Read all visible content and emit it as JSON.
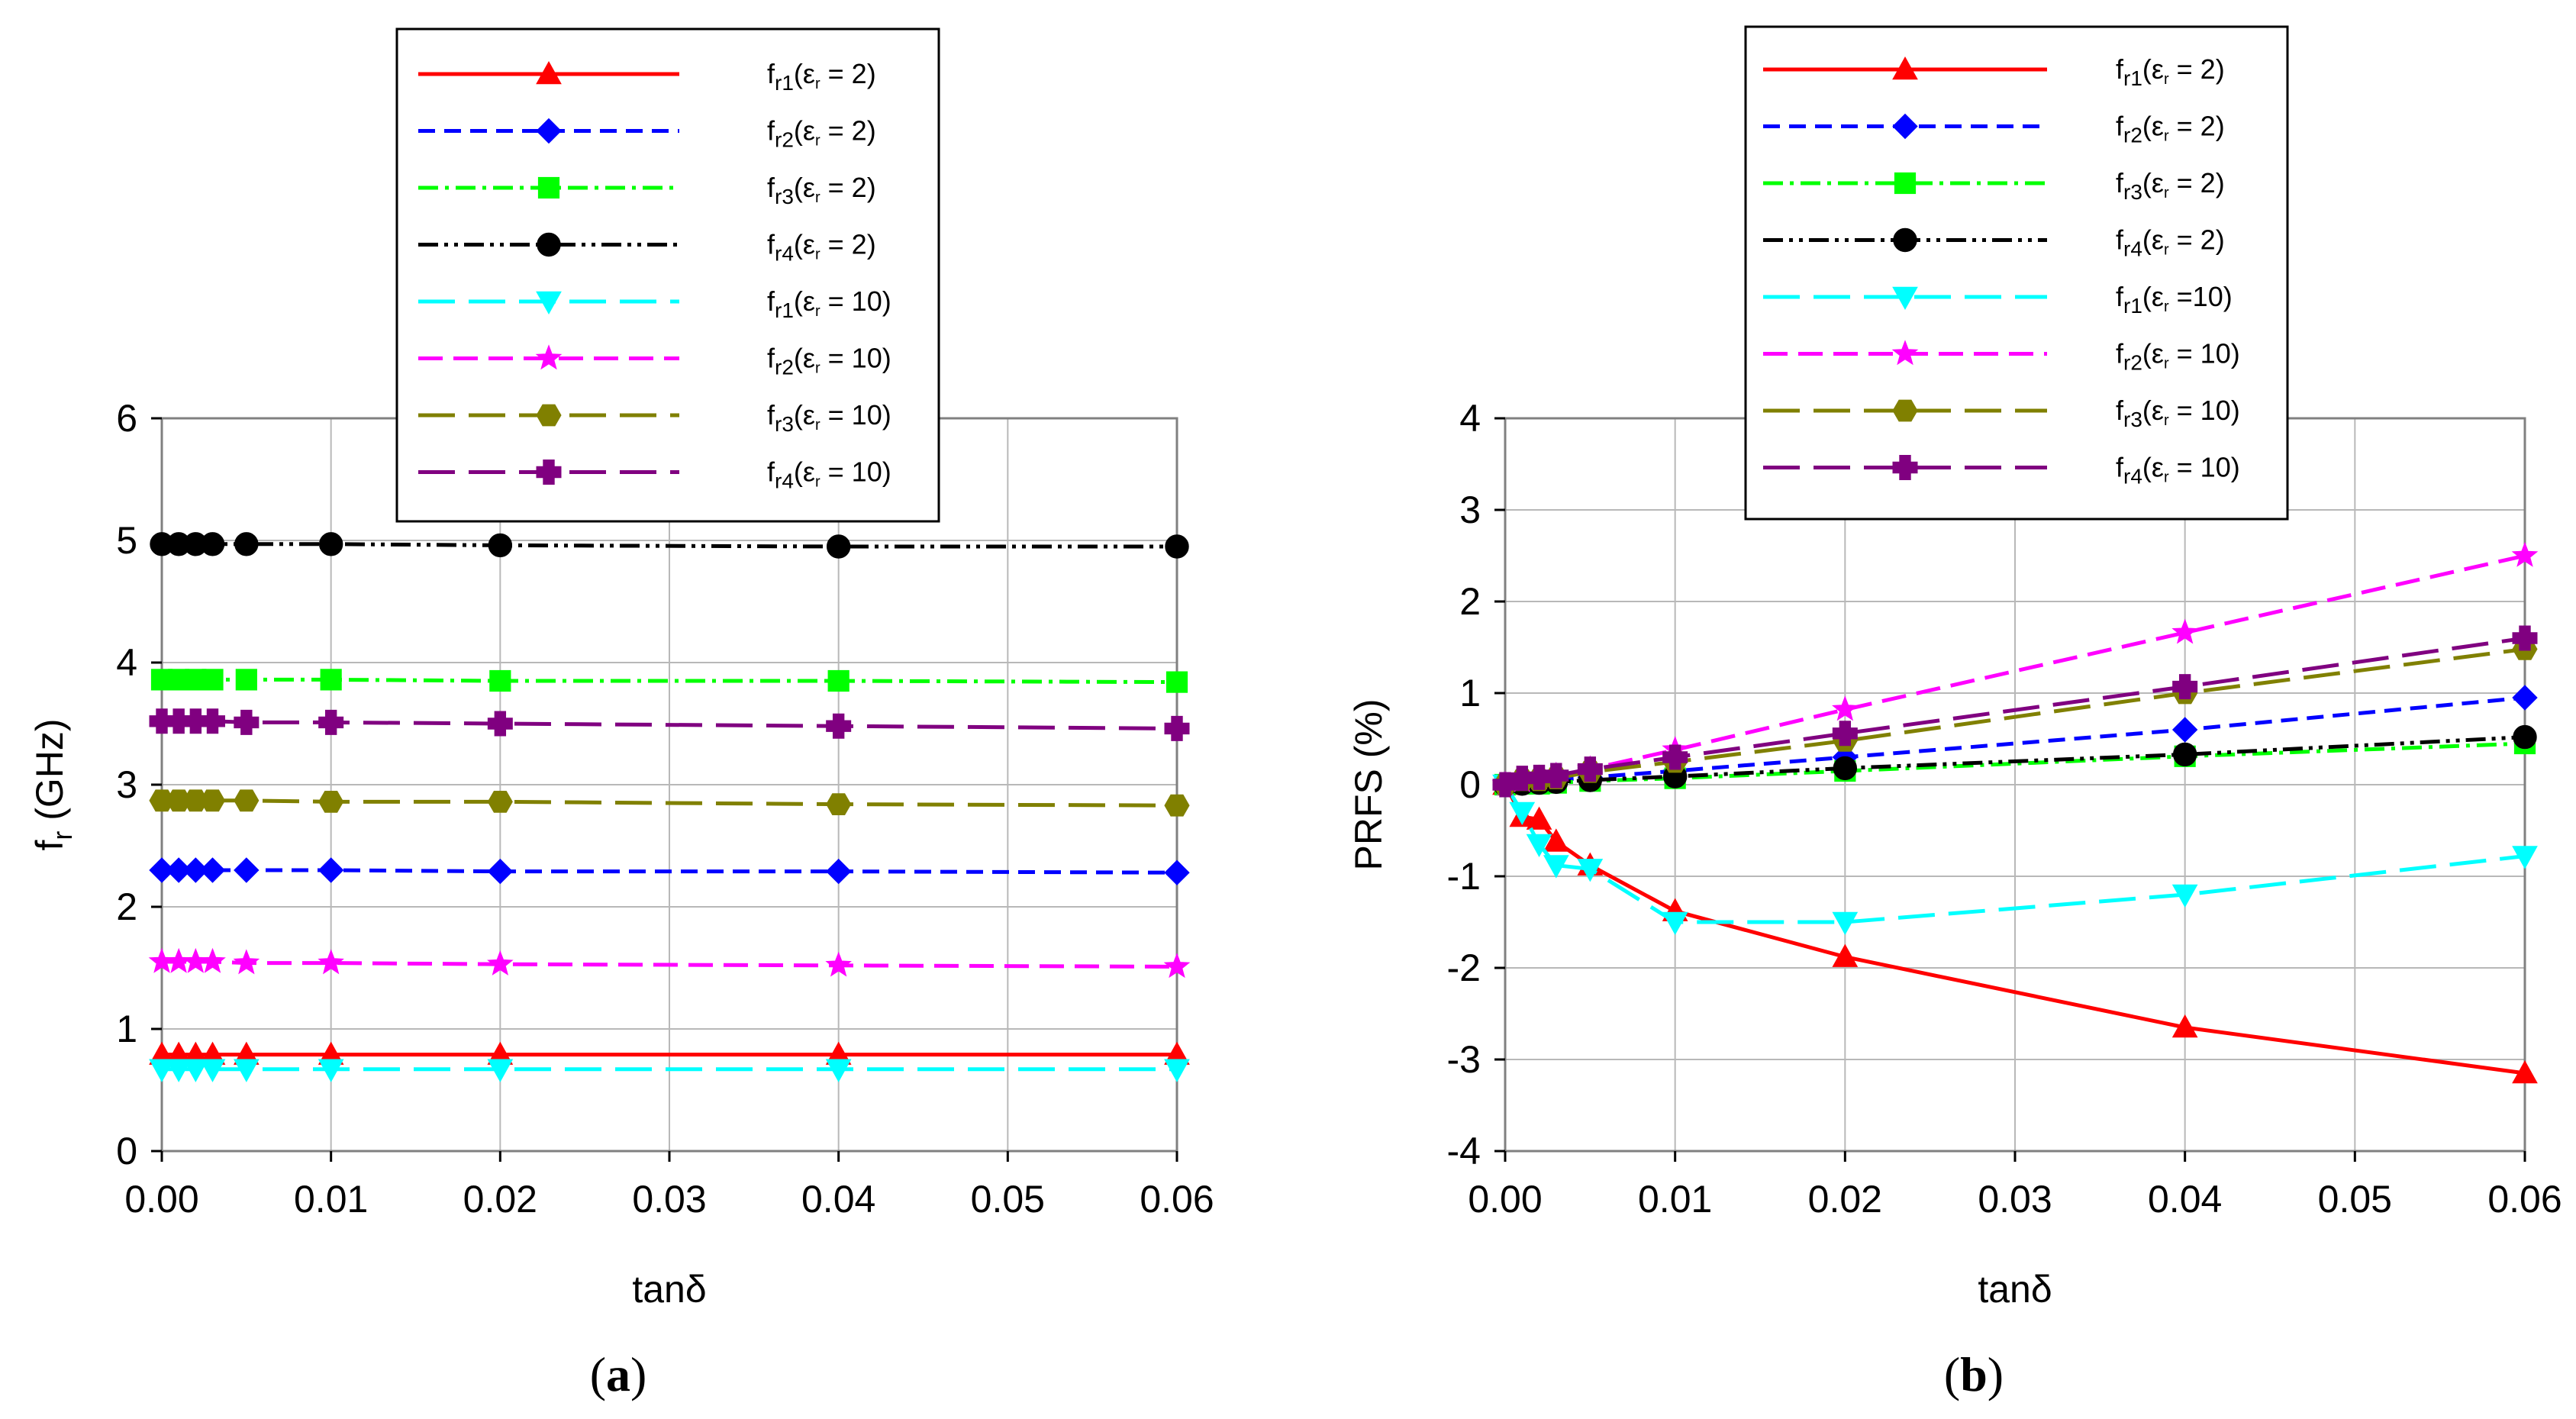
{
  "chart_data": [
    {
      "type": "line",
      "panel": "a",
      "caption": {
        "open": "(",
        "letter": "a",
        "close": ")"
      },
      "xlabel": "tanδ",
      "ylabel": {
        "main": "f",
        "sub": "r",
        "rest": " (GHz)"
      },
      "xlim": [
        0,
        0.06
      ],
      "ylim": [
        0,
        6
      ],
      "xticks": [
        "0.00",
        "0.01",
        "0.02",
        "0.03",
        "0.04",
        "0.05",
        "0.06"
      ],
      "yticks": [
        "0",
        "1",
        "2",
        "3",
        "4",
        "5",
        "6"
      ],
      "grid": true,
      "legend_position": "top-center",
      "x": [
        0,
        0.001,
        0.002,
        0.003,
        0.005,
        0.01,
        0.02,
        0.04,
        0.06
      ],
      "series": [
        {
          "name": "fr1(εr = 2)",
          "label": {
            "pre": "f",
            "sub": "r1",
            "mid": "(ε",
            "sub2": "r",
            "post": " = 2)"
          },
          "color": "#ff0000",
          "dash": "",
          "marker": "triangle",
          "values": [
            0.79,
            0.79,
            0.79,
            0.79,
            0.79,
            0.79,
            0.79,
            0.79,
            0.79
          ]
        },
        {
          "name": "fr2(εr = 2)",
          "label": {
            "pre": "f",
            "sub": "r2",
            "mid": "(ε",
            "sub2": "r",
            "post": " = 2)"
          },
          "color": "#0000ff",
          "dash": "22,12",
          "marker": "diamond",
          "values": [
            2.3,
            2.3,
            2.3,
            2.3,
            2.3,
            2.3,
            2.29,
            2.29,
            2.28
          ]
        },
        {
          "name": "fr3(εr = 2)",
          "label": {
            "pre": "f",
            "sub": "r3",
            "mid": "(ε",
            "sub2": "r",
            "post": " = 2)"
          },
          "color": "#00ff00",
          "dash": "26,9,5,9",
          "marker": "square",
          "values": [
            3.86,
            3.86,
            3.86,
            3.86,
            3.86,
            3.86,
            3.85,
            3.85,
            3.84
          ]
        },
        {
          "name": "fr4(εr = 2)",
          "label": {
            "pre": "f",
            "sub": "r4",
            "mid": "(ε",
            "sub2": "r",
            "post": " = 2)"
          },
          "color": "#000000",
          "dash": "26,8,5,8,5,8",
          "marker": "circle",
          "values": [
            4.97,
            4.97,
            4.97,
            4.97,
            4.97,
            4.97,
            4.96,
            4.95,
            4.95
          ]
        },
        {
          "name": "fr1(εr = 10)",
          "label": {
            "pre": "f",
            "sub": "r1",
            "mid": "(ε",
            "sub2": "r",
            "post": " = 10)"
          },
          "color": "#00ffff",
          "dash": "48,18",
          "marker": "triangle-down",
          "values": [
            0.67,
            0.67,
            0.67,
            0.67,
            0.67,
            0.67,
            0.67,
            0.67,
            0.67
          ]
        },
        {
          "name": "fr2(εr = 10)",
          "label": {
            "pre": "f",
            "sub": "r2",
            "mid": "(ε",
            "sub2": "r",
            "post": " = 10)"
          },
          "color": "#ff00ff",
          "dash": "32,14",
          "marker": "star",
          "values": [
            1.55,
            1.55,
            1.55,
            1.55,
            1.54,
            1.54,
            1.53,
            1.52,
            1.51
          ]
        },
        {
          "name": "fr3(εr = 10)",
          "label": {
            "pre": "f",
            "sub": "r3",
            "mid": "(ε",
            "sub2": "r",
            "post": " = 10)"
          },
          "color": "#808000",
          "dash": "48,18",
          "marker": "hexagon",
          "values": [
            2.87,
            2.87,
            2.87,
            2.87,
            2.87,
            2.86,
            2.86,
            2.84,
            2.83
          ]
        },
        {
          "name": "fr4(εr = 10)",
          "label": {
            "pre": "f",
            "sub": "r4",
            "mid": "(ε",
            "sub2": "r",
            "post": " = 10)"
          },
          "color": "#800080",
          "dash": "48,18",
          "marker": "plus",
          "values": [
            3.52,
            3.52,
            3.52,
            3.52,
            3.51,
            3.51,
            3.5,
            3.48,
            3.46
          ]
        }
      ]
    },
    {
      "type": "line",
      "panel": "b",
      "caption": {
        "open": "(",
        "letter": "b",
        "close": ")"
      },
      "xlabel": "tanδ",
      "ylabel": {
        "main": "PRFS (%)",
        "sub": "",
        "rest": ""
      },
      "xlim": [
        0,
        0.06
      ],
      "ylim": [
        -4,
        4
      ],
      "xticks": [
        "0.00",
        "0.01",
        "0.02",
        "0.03",
        "0.04",
        "0.05",
        "0.06"
      ],
      "yticks": [
        "-4",
        "-3",
        "-2",
        "-1",
        "0",
        "1",
        "2",
        "3",
        "4"
      ],
      "grid": true,
      "legend_position": "top-center",
      "x": [
        0,
        0.001,
        0.002,
        0.003,
        0.005,
        0.01,
        0.02,
        0.04,
        0.06
      ],
      "series": [
        {
          "name": "fr1(εr = 2)",
          "label": {
            "pre": "f",
            "sub": "r1",
            "mid": "(ε",
            "sub2": "r",
            "post": " = 2)"
          },
          "color": "#ff0000",
          "dash": "",
          "marker": "triangle",
          "values": [
            0,
            -0.35,
            -0.38,
            -0.62,
            -0.88,
            -1.38,
            -1.88,
            -2.65,
            -3.15
          ]
        },
        {
          "name": "fr2(εr = 2)",
          "label": {
            "pre": "f",
            "sub": "r2",
            "mid": "(ε",
            "sub2": "r",
            "post": " = 2)"
          },
          "color": "#0000ff",
          "dash": "22,12",
          "marker": "diamond",
          "values": [
            0,
            0.02,
            0.03,
            0.05,
            0.08,
            0.15,
            0.3,
            0.6,
            0.95
          ]
        },
        {
          "name": "fr3(εr = 2)",
          "label": {
            "pre": "f",
            "sub": "r3",
            "mid": "(ε",
            "sub2": "r",
            "post": " = 2)"
          },
          "color": "#00ff00",
          "dash": "26,9,5,9",
          "marker": "square",
          "values": [
            0,
            0.01,
            0.01,
            0.02,
            0.04,
            0.07,
            0.15,
            0.31,
            0.45
          ]
        },
        {
          "name": "fr4(εr = 2)",
          "label": {
            "pre": "f",
            "sub": "r4",
            "mid": "(ε",
            "sub2": "r",
            "post": " = 2)"
          },
          "color": "#000000",
          "dash": "26,8,5,8,5,8",
          "marker": "circle",
          "values": [
            0,
            0.01,
            0.02,
            0.03,
            0.05,
            0.09,
            0.18,
            0.33,
            0.52
          ]
        },
        {
          "name": "fr1(εr =10)",
          "label": {
            "pre": "f",
            "sub": "r1",
            "mid": "(ε",
            "sub2": "r",
            "post": " =10)"
          },
          "color": "#00ffff",
          "dash": "48,18",
          "marker": "triangle-down",
          "values": [
            0,
            -0.3,
            -0.65,
            -0.88,
            -0.92,
            -1.5,
            -1.5,
            -1.2,
            -0.78
          ]
        },
        {
          "name": "fr2(εr = 10)",
          "label": {
            "pre": "f",
            "sub": "r2",
            "mid": "(ε",
            "sub2": "r",
            "post": " = 10)"
          },
          "color": "#ff00ff",
          "dash": "32,14",
          "marker": "star",
          "values": [
            0,
            0.04,
            0.07,
            0.1,
            0.17,
            0.38,
            0.82,
            1.66,
            2.5
          ]
        },
        {
          "name": "fr3(εr = 10)",
          "label": {
            "pre": "f",
            "sub": "r3",
            "mid": "(ε",
            "sub2": "r",
            "post": " = 10)"
          },
          "color": "#808000",
          "dash": "48,18",
          "marker": "hexagon",
          "values": [
            0,
            0.05,
            0.05,
            0.07,
            0.14,
            0.25,
            0.48,
            1.0,
            1.48
          ]
        },
        {
          "name": "fr4(εr = 10)",
          "label": {
            "pre": "f",
            "sub": "r4",
            "mid": "(ε",
            "sub2": "r",
            "post": " = 10)"
          },
          "color": "#800080",
          "dash": "48,18",
          "marker": "plus",
          "values": [
            0,
            0.07,
            0.08,
            0.1,
            0.17,
            0.3,
            0.56,
            1.07,
            1.6
          ]
        }
      ]
    }
  ]
}
